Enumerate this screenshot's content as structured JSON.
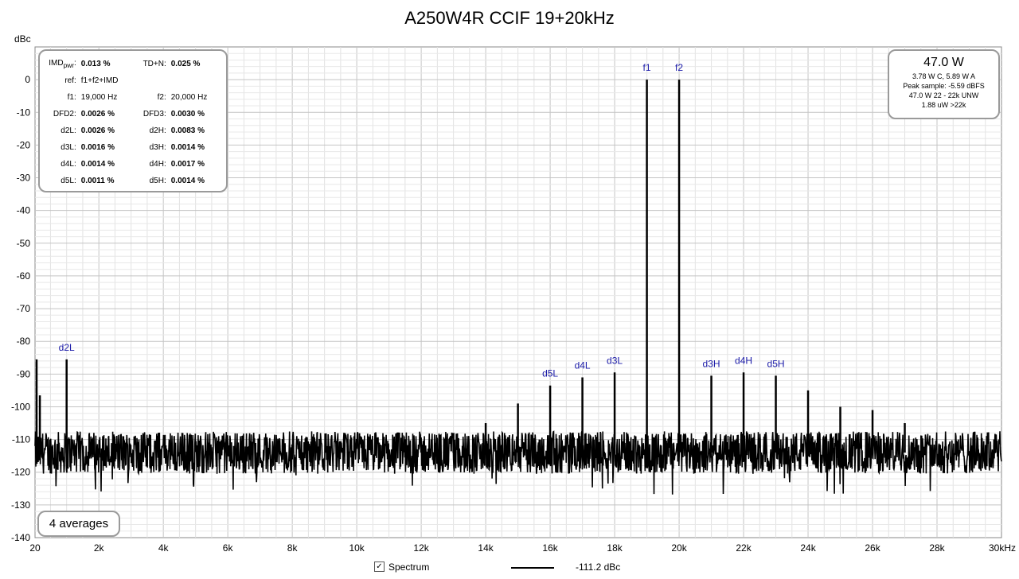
{
  "chart_data": {
    "type": "line",
    "title": "A250W4R CCIF 19+20kHz",
    "ylabel": "dBc",
    "xlabel": "",
    "xlim": [
      20,
      30000
    ],
    "ylim": [
      -140,
      10
    ],
    "x_ticks": [
      "20",
      "2k",
      "4k",
      "6k",
      "8k",
      "10k",
      "12k",
      "14k",
      "16k",
      "18k",
      "20k",
      "22k",
      "24k",
      "26k",
      "28k",
      "30kHz"
    ],
    "y_ticks": [
      "0",
      "-10",
      "-20",
      "-30",
      "-40",
      "-50",
      "-60",
      "-70",
      "-80",
      "-90",
      "-100",
      "-110",
      "-120",
      "-130",
      "-140"
    ],
    "grid": true,
    "noise_floor": {
      "mean": -114,
      "upper": -110,
      "lower": -120,
      "min_spikes": -127
    },
    "peaks": [
      {
        "label": "",
        "x": 20,
        "y": -85.5
      },
      {
        "label": "",
        "x": 170,
        "y": -96.5
      },
      {
        "label": "d2L",
        "x": 1000,
        "y": -85.5
      },
      {
        "label": "",
        "x": 13000,
        "y": -108
      },
      {
        "label": "",
        "x": 14000,
        "y": -105
      },
      {
        "label": "",
        "x": 15000,
        "y": -99
      },
      {
        "label": "d5L",
        "x": 16000,
        "y": -93.5
      },
      {
        "label": "d4L",
        "x": 17000,
        "y": -91
      },
      {
        "label": "d3L",
        "x": 18000,
        "y": -89.5
      },
      {
        "label": "f1",
        "x": 19000,
        "y": 0
      },
      {
        "label": "f2",
        "x": 20000,
        "y": 0
      },
      {
        "label": "d3H",
        "x": 21000,
        "y": -90.5
      },
      {
        "label": "d4H",
        "x": 22000,
        "y": -89.5
      },
      {
        "label": "d5H",
        "x": 23000,
        "y": -90.5
      },
      {
        "label": "",
        "x": 24000,
        "y": -95
      },
      {
        "label": "",
        "x": 25000,
        "y": -100
      },
      {
        "label": "",
        "x": 26000,
        "y": -101
      },
      {
        "label": "",
        "x": 27000,
        "y": -105
      }
    ],
    "series": [
      {
        "name": "Spectrum",
        "value_label": "-111.2 dBc"
      }
    ]
  },
  "stats": {
    "rows": [
      {
        "k1": "IMD",
        "k1sub": "pwr",
        "k1tail": ":",
        "v1": "0.013 %",
        "k2": "TD+N:",
        "v2": "0.025 %"
      },
      {
        "k1": "ref:",
        "v1": "f1+f2+IMD",
        "k2": "",
        "v2": "",
        "plain": true
      },
      {
        "k1": "f1:",
        "v1": "19,000 Hz",
        "k2": "f2:",
        "v2": "20,000 Hz",
        "plain": true
      },
      {
        "k1": "DFD2:",
        "v1": "0.0026 %",
        "k2": "DFD3:",
        "v2": "0.0030 %"
      },
      {
        "k1": "d2L:",
        "v1": "0.0026 %",
        "k2": "d2H:",
        "v2": "0.0083 %"
      },
      {
        "k1": "d3L:",
        "v1": "0.0016 %",
        "k2": "d3H:",
        "v2": "0.0014 %"
      },
      {
        "k1": "d4L:",
        "v1": "0.0014 %",
        "k2": "d4H:",
        "v2": "0.0017 %"
      },
      {
        "k1": "d5L:",
        "v1": "0.0011 %",
        "k2": "d5H:",
        "v2": "0.0014 %"
      }
    ]
  },
  "power": {
    "main": "47.0 W",
    "lines": [
      "3.78 W C, 5.89 W A",
      "Peak sample: -5.59 dBFS",
      "47.0 W 22 - 22k UNW",
      "1.88 uW >22k"
    ]
  },
  "averages": "4 averages",
  "legend": {
    "checkbox": "✓",
    "name": "Spectrum",
    "value": "-111.2 dBc"
  }
}
